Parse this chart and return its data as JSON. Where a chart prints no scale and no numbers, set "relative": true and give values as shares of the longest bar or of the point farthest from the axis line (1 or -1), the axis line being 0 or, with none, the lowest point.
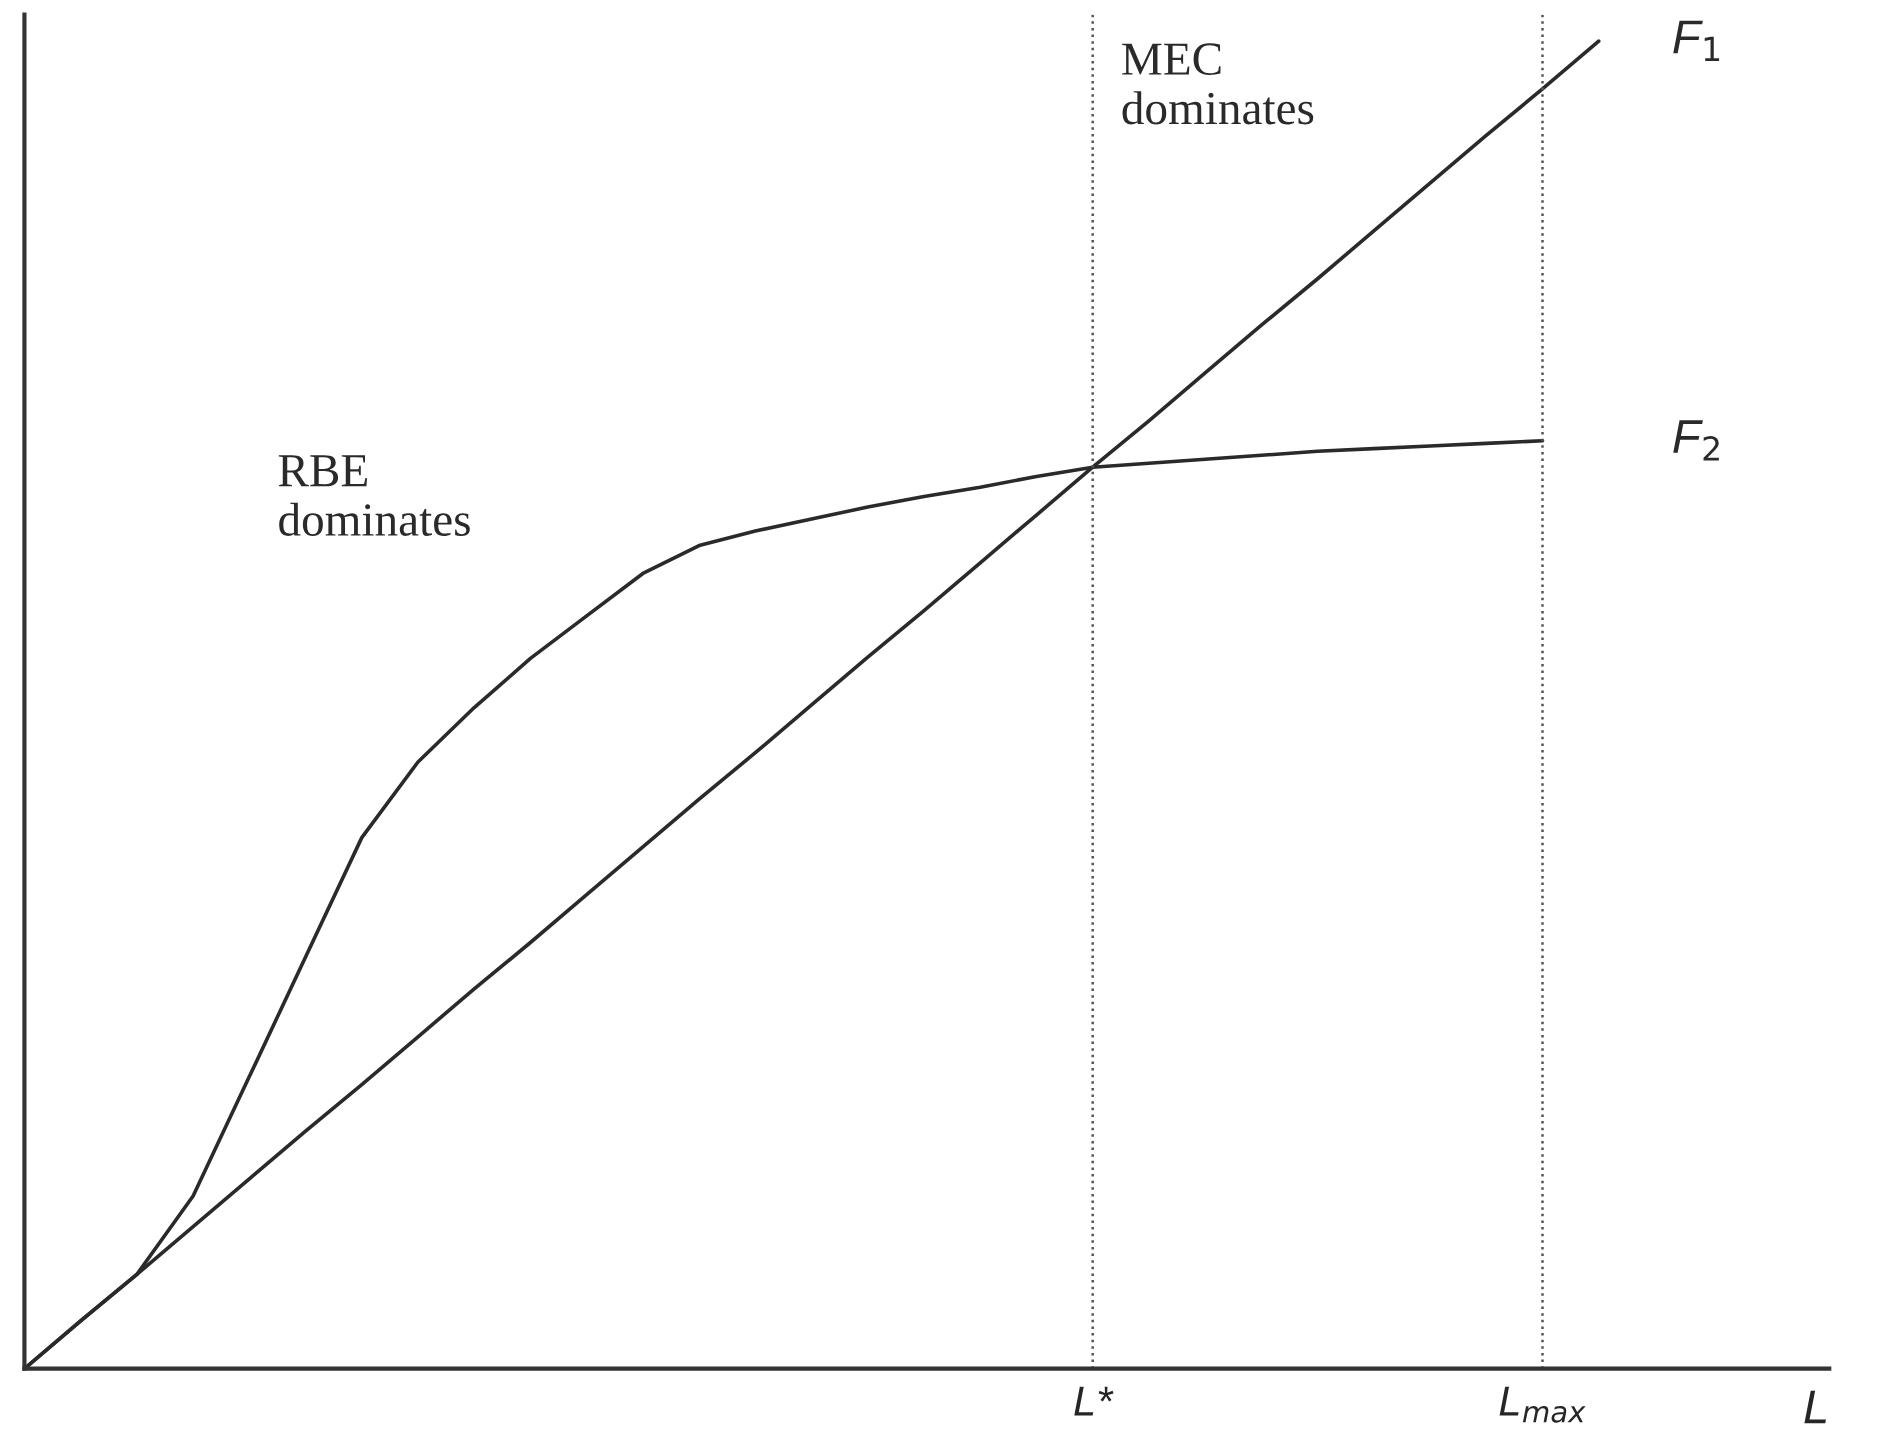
{
  "chart_data": {
    "type": "line",
    "relative": true,
    "xlabel": "L",
    "tick_labels": "x",
    "grid": false,
    "legend": false,
    "line_style": "solid",
    "marker": "none",
    "categories": [
      null,
      null,
      null,
      null,
      null,
      null,
      null,
      null,
      null,
      null,
      null,
      null,
      null,
      null,
      null,
      null,
      null,
      null,
      null,
      "L*",
      null,
      null,
      null,
      null,
      null,
      null,
      null,
      "L$_{max}$",
      null
    ],
    "series": [
      {
        "name": "F$_{1}$",
        "color": "#2a2a2a",
        "values": [
          0,
          0.036,
          0.071,
          0.107,
          0.143,
          0.179,
          0.214,
          0.25,
          0.286,
          0.321,
          0.357,
          0.393,
          0.429,
          0.464,
          0.5,
          0.536,
          0.571,
          0.607,
          0.643,
          0.679,
          0.714,
          0.75,
          0.786,
          0.821,
          0.857,
          0.893,
          0.929,
          0.964,
          1
        ]
      },
      {
        "name": "F$_{2}$",
        "color": "#2a2a2a",
        "values": [
          0,
          0.036,
          0.071,
          0.13,
          0.22,
          0.31,
          0.4,
          0.457,
          0.498,
          0.535,
          0.567,
          0.599,
          0.62,
          0.631,
          0.64,
          0.649,
          0.657,
          0.664,
          0.672,
          0.679,
          0.682,
          0.685,
          0.688,
          0.691,
          0.693,
          0.695,
          0.697,
          0.699,
          null
        ]
      }
    ],
    "ref_lines": [
      {
        "axis": "x",
        "value": "L*",
        "line_style": "dotted",
        "color": "#555555"
      },
      {
        "axis": "x",
        "value": "L$_{max}$",
        "line_style": "dotted",
        "color": "#555555"
      }
    ],
    "annotations": [
      "RBE\ndominates",
      "MEC\ndominates"
    ]
  }
}
